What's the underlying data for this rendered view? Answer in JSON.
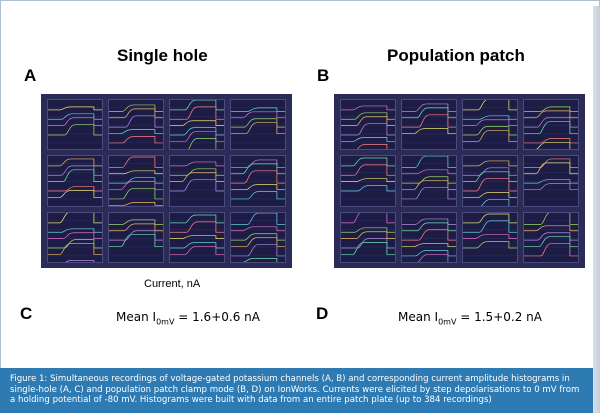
{
  "figure": {
    "left_title": "Single hole",
    "right_title": "Population patch",
    "labels": {
      "a": "A",
      "b": "B",
      "c": "C",
      "d": "D"
    },
    "x_axis_label": "Current, nA",
    "mean_c": {
      "prefix": "Mean I",
      "sub": "0mV",
      "suffix": " = 1.6+0.6 nA"
    },
    "mean_d": {
      "prefix": "Mean I",
      "sub": "0mV",
      "suffix": " = 1.5+0.2 nA"
    },
    "caption": "Figure 1: Simultaneous recordings of voltage-gated potassium channels (A, B) and corresponding current amplitude histograms in single-hole (A, C) and population patch clamp mode (B, D) on IonWorks. Currents were elicited by step depolarisations to 0 mV from a holding potential of -80 mV. Histograms were built with data from an entire patch plate (up to 384 recordings)"
  },
  "colors": {
    "panel_bg": "#2b2b57",
    "cell_bg": "#1c1c45",
    "caption_bg": "#2e7ab3",
    "traces": [
      "#e8e070",
      "#5fd0e0",
      "#e070c8",
      "#9ad86a",
      "#f0b860",
      "#b48be0",
      "#70e0b0",
      "#ff8080"
    ]
  }
}
